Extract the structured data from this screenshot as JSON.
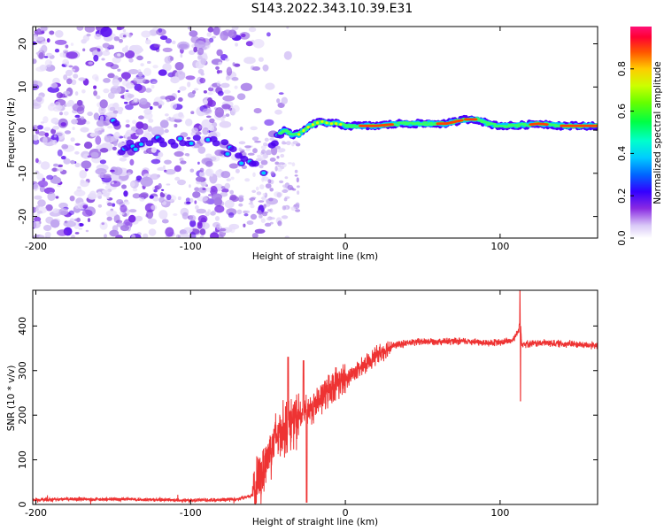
{
  "title": "S143.2022.343.10.39.E31",
  "chart_data": [
    {
      "type": "heatmap",
      "xlabel": "Height of straight line (km)",
      "ylabel": "Frequency (Hz)",
      "xlim": [
        -202,
        163
      ],
      "ylim": [
        -25,
        24
      ],
      "xticks": [
        -200,
        -100,
        0,
        100
      ],
      "yticks": [
        -20,
        -10,
        0,
        10,
        20
      ],
      "colorbar": {
        "label": "Normalized spectral amplitude",
        "range": [
          0,
          1
        ],
        "ticks": [
          "0.0",
          "0.2",
          "0.4",
          "0.6",
          "0.8"
        ]
      },
      "trace": {
        "x": [
          -145,
          -128,
          -95,
          -85,
          -78,
          -70,
          -64,
          -58,
          -55,
          -48,
          -44,
          -40,
          -35,
          -30,
          -25,
          -20,
          -15,
          -10,
          -5,
          0,
          10,
          20,
          35,
          50,
          65,
          78,
          85,
          92,
          100,
          110,
          125,
          140,
          163
        ],
        "y": [
          -4,
          -3,
          -2.5,
          -2,
          -4,
          -6,
          -8,
          -7,
          -12,
          -4,
          -1.5,
          0,
          -1,
          -1,
          0.5,
          1.5,
          2,
          1.5,
          1.5,
          1,
          1,
          1,
          1.5,
          1.5,
          1.5,
          2.5,
          2.5,
          1.5,
          1,
          1,
          1.5,
          1,
          1
        ]
      }
    },
    {
      "type": "line",
      "xlabel": "Height of straight line (km)",
      "ylabel": "SNR (10 * v/v)",
      "xlim": [
        -202,
        163
      ],
      "ylim": [
        0,
        480
      ],
      "xticks": [
        -200,
        -100,
        0,
        100
      ],
      "yticks": [
        0,
        100,
        200,
        300,
        400
      ],
      "series": [
        {
          "name": "SNR",
          "color": "#ee3333",
          "x": [
            -202,
            -180,
            -160,
            -140,
            -120,
            -100,
            -80,
            -70,
            -60,
            -55,
            -50,
            -45,
            -40,
            -35,
            -30,
            -25,
            -20,
            -15,
            -10,
            -5,
            0,
            5,
            10,
            15,
            20,
            25,
            30,
            40,
            50,
            60,
            70,
            80,
            90,
            100,
            108,
            112,
            113,
            114,
            118,
            130,
            140,
            150,
            163
          ],
          "y": [
            10,
            12,
            11,
            12,
            10,
            9,
            11,
            12,
            20,
            60,
            110,
            150,
            170,
            180,
            195,
            210,
            220,
            240,
            260,
            275,
            280,
            295,
            305,
            320,
            335,
            345,
            355,
            362,
            365,
            366,
            365,
            366,
            362,
            363,
            368,
            390,
            420,
            360,
            360,
            362,
            360,
            359,
            355
          ]
        }
      ]
    }
  ]
}
